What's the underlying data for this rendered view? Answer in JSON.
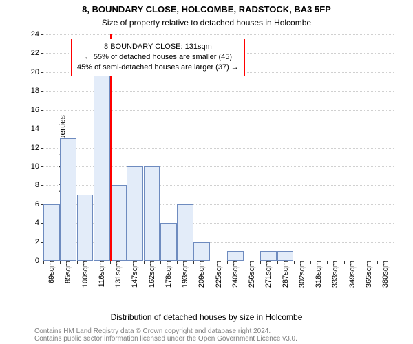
{
  "title": "8, BOUNDARY CLOSE, HOLCOMBE, RADSTOCK, BA3 5FP",
  "subtitle": "Size of property relative to detached houses in Holcombe",
  "x_axis_label": "Distribution of detached houses by size in Holcombe",
  "y_axis_label": "Number of detached properties",
  "attribution": {
    "line1": "Contains HM Land Registry data © Crown copyright and database right 2024.",
    "line2": "Contains public sector information licensed under the Open Government Licence v3.0."
  },
  "chart": {
    "type": "histogram",
    "ylim": [
      0,
      24
    ],
    "ytick_step": 2,
    "background_color": "#ffffff",
    "grid_color": "#d0d0d0",
    "bar_fill": "#e3ecf9",
    "bar_stroke": "#6e8bbf",
    "bar_stroke_width": 1,
    "marker_color": "#ff0000",
    "marker_x_value": 131,
    "x_categories": [
      "69sqm",
      "85sqm",
      "100sqm",
      "116sqm",
      "131sqm",
      "147sqm",
      "162sqm",
      "178sqm",
      "193sqm",
      "209sqm",
      "225sqm",
      "240sqm",
      "256sqm",
      "271sqm",
      "287sqm",
      "302sqm",
      "318sqm",
      "333sqm",
      "349sqm",
      "365sqm",
      "380sqm"
    ],
    "values": [
      6,
      13,
      7,
      22,
      8,
      10,
      10,
      4,
      6,
      2,
      0,
      1,
      0,
      1,
      1,
      0,
      0,
      0,
      0,
      0,
      0
    ],
    "bar_width_ratio": 0.98,
    "font_size_title": 13,
    "font_size_subtitle": 12,
    "font_size_axis_label": 12,
    "font_size_tick": 11,
    "font_size_attrib": 10,
    "font_size_annotation": 11
  },
  "annotation": {
    "line1": "8 BOUNDARY CLOSE: 131sqm",
    "line2": "← 55% of detached houses are smaller (45)",
    "line3": "45% of semi-detached houses are larger (37) →",
    "border_color": "#ff0000",
    "text_color": "#000000"
  }
}
